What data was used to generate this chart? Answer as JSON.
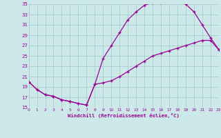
{
  "xlabel": "Windchill (Refroidissement éolien,°C)",
  "bg_color": "#cce8e8",
  "line_color": "#990099",
  "grid_color": "#aacccc",
  "x_min": 0,
  "x_max": 23,
  "y_min": 15,
  "y_max": 35,
  "yticks": [
    15,
    17,
    19,
    21,
    23,
    25,
    27,
    29,
    31,
    33,
    35
  ],
  "xticks": [
    0,
    1,
    2,
    3,
    4,
    5,
    6,
    7,
    8,
    9,
    10,
    11,
    12,
    13,
    14,
    15,
    16,
    17,
    18,
    19,
    20,
    21,
    22,
    23
  ],
  "line1_x": [
    0,
    1,
    2,
    3,
    4,
    5,
    6,
    7,
    8,
    9,
    10,
    11,
    12,
    13,
    14,
    15,
    16,
    17,
    18,
    19,
    20,
    21,
    22,
    23
  ],
  "line1_y": [
    20,
    18.5,
    17.5,
    17.2,
    16.5,
    16.2,
    15.8,
    15.5,
    19.5,
    24.5,
    27.0,
    29.5,
    32.0,
    33.5,
    34.8,
    35.3,
    35.3,
    35.7,
    35.7,
    35.0,
    33.5,
    31.0,
    28.5,
    26.2
  ],
  "line2_x": [
    0,
    1,
    2,
    3,
    4,
    5,
    6,
    7,
    8,
    9,
    10,
    11,
    12,
    13,
    14,
    15,
    16,
    17,
    18,
    19,
    20,
    21,
    22,
    23
  ],
  "line2_y": [
    20,
    18.5,
    17.5,
    17.2,
    16.5,
    16.2,
    15.8,
    15.5,
    19.5,
    19.8,
    20.2,
    21.0,
    22.0,
    23.0,
    24.0,
    25.0,
    25.5,
    26.0,
    26.5,
    27.0,
    27.5,
    28.0,
    28.0,
    26.2
  ]
}
